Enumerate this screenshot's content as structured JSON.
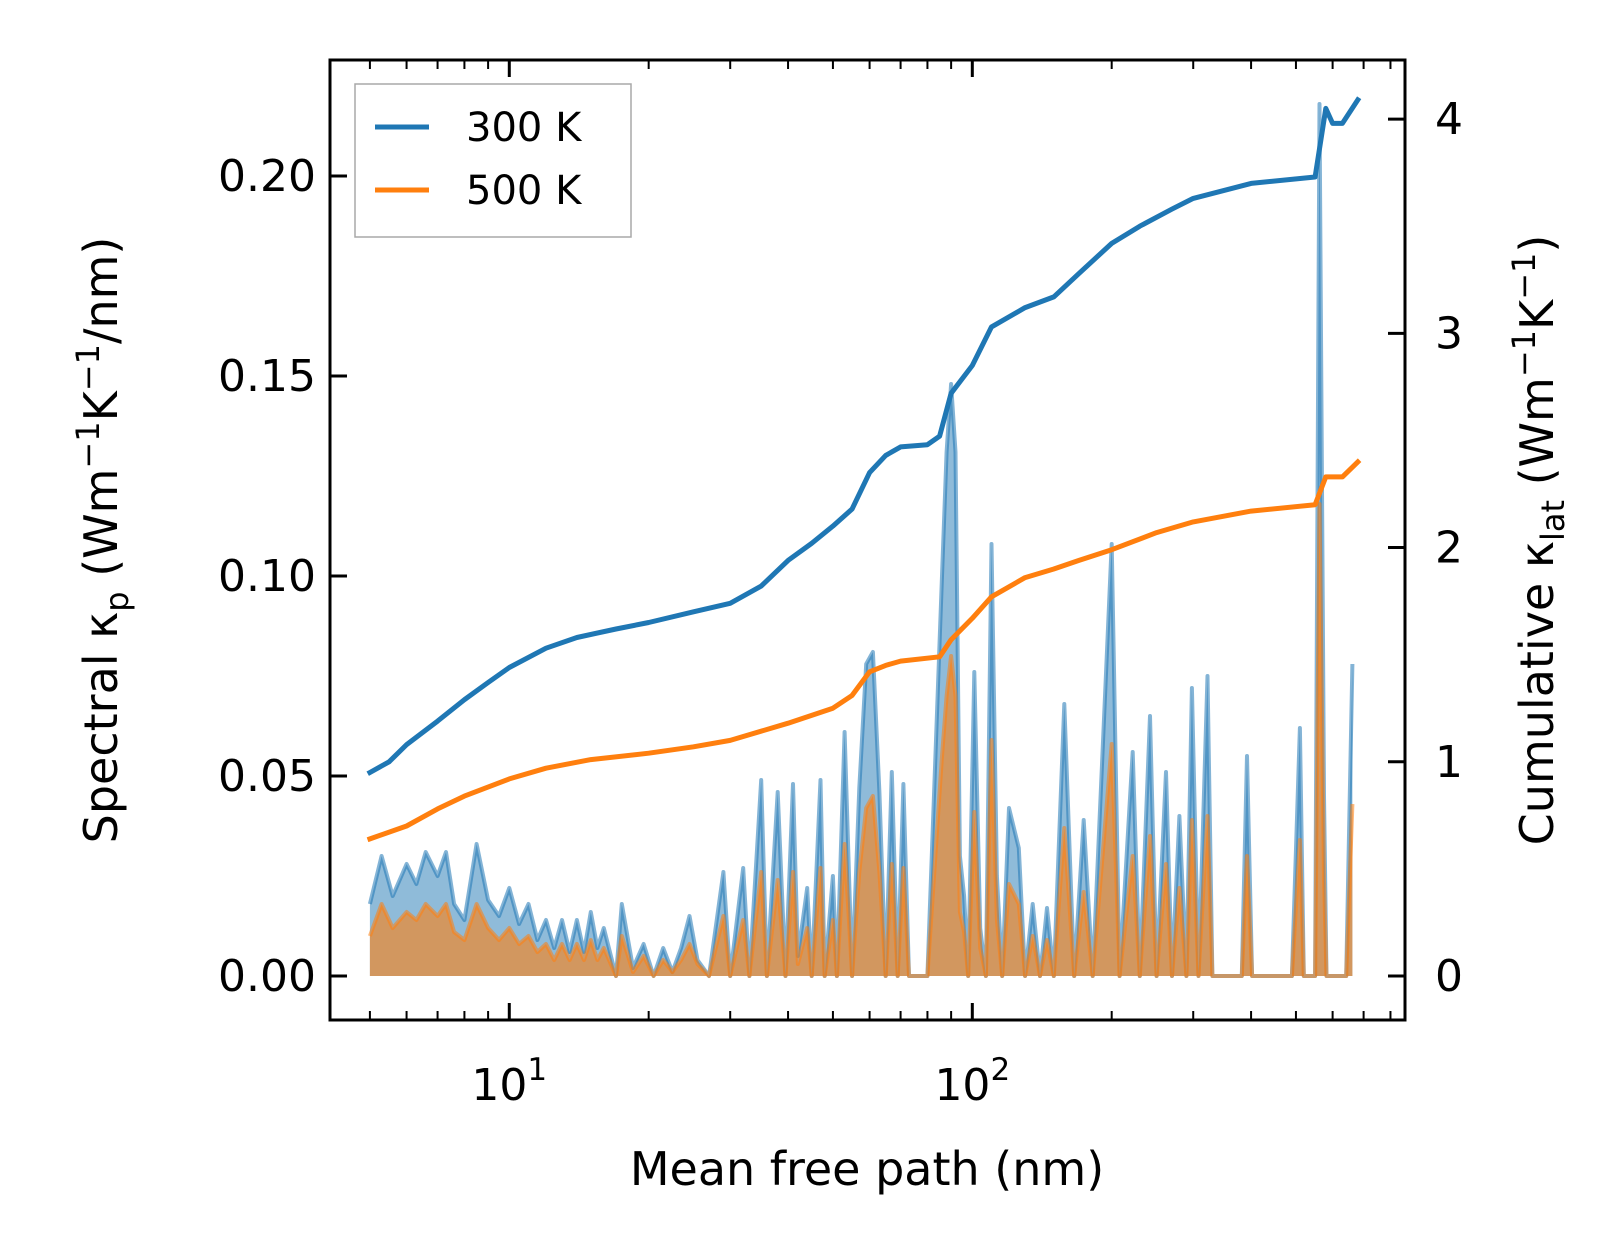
{
  "chart_data": {
    "type": "line",
    "title": "",
    "xlabel": "Mean free path (nm)",
    "ylabel_left_parts": [
      "Spectral κ",
      "p",
      " (Wm",
      "−1",
      "K",
      "−1",
      "/nm)"
    ],
    "ylabel_right_parts": [
      "Cumulative κ",
      "lat",
      " (Wm",
      "−1",
      "K",
      "−1",
      ")"
    ],
    "x_scale": "log",
    "xlim": [
      4.1,
      860
    ],
    "ylim_left": [
      -0.011,
      0.229
    ],
    "ylim_right": [
      -0.2054,
      4.276
    ],
    "x_major_ticks": [
      {
        "value": 10,
        "base": "10",
        "exp": "1"
      },
      {
        "value": 100,
        "base": "10",
        "exp": "2"
      }
    ],
    "yticks_left": [
      {
        "value": 0.0,
        "label": "0.00"
      },
      {
        "value": 0.05,
        "label": "0.05"
      },
      {
        "value": 0.1,
        "label": "0.10"
      },
      {
        "value": 0.15,
        "label": "0.15"
      },
      {
        "value": 0.2,
        "label": "0.20"
      }
    ],
    "yticks_right": [
      {
        "value": 0,
        "label": "0"
      },
      {
        "value": 1,
        "label": "1"
      },
      {
        "value": 2,
        "label": "2"
      },
      {
        "value": 3,
        "label": "3"
      },
      {
        "value": 4,
        "label": "4"
      }
    ],
    "legend": {
      "position": "upper-left",
      "entries": [
        "300 K",
        "500 K"
      ]
    },
    "colors": {
      "300K": "#1f77b4",
      "500K": "#ff7f0e"
    },
    "series": [
      {
        "name": "300 K",
        "color": "#1f77b4",
        "axis": "right",
        "kind": "cumulative",
        "points": [
          [
            5,
            0.95
          ],
          [
            5.5,
            1.0
          ],
          [
            6,
            1.08
          ],
          [
            7,
            1.19
          ],
          [
            8,
            1.29
          ],
          [
            9,
            1.37
          ],
          [
            10,
            1.44
          ],
          [
            12,
            1.53
          ],
          [
            14,
            1.58
          ],
          [
            17,
            1.62
          ],
          [
            20,
            1.65
          ],
          [
            25,
            1.7
          ],
          [
            30,
            1.74
          ],
          [
            35,
            1.82
          ],
          [
            40,
            1.94
          ],
          [
            45,
            2.02
          ],
          [
            50,
            2.1
          ],
          [
            55,
            2.18
          ],
          [
            60,
            2.35
          ],
          [
            65,
            2.43
          ],
          [
            70,
            2.47
          ],
          [
            80,
            2.48
          ],
          [
            85,
            2.52
          ],
          [
            90,
            2.72
          ],
          [
            100,
            2.85
          ],
          [
            110,
            3.03
          ],
          [
            130,
            3.12
          ],
          [
            150,
            3.17
          ],
          [
            170,
            3.28
          ],
          [
            200,
            3.42
          ],
          [
            230,
            3.5
          ],
          [
            270,
            3.58
          ],
          [
            300,
            3.63
          ],
          [
            400,
            3.7
          ],
          [
            550,
            3.73
          ],
          [
            580,
            4.05
          ],
          [
            600,
            3.98
          ],
          [
            630,
            3.98
          ],
          [
            680,
            4.09
          ]
        ]
      },
      {
        "name": "500 K",
        "color": "#ff7f0e",
        "axis": "right",
        "kind": "cumulative",
        "points": [
          [
            5,
            0.64
          ],
          [
            6,
            0.7
          ],
          [
            7,
            0.78
          ],
          [
            8,
            0.84
          ],
          [
            10,
            0.92
          ],
          [
            12,
            0.97
          ],
          [
            15,
            1.01
          ],
          [
            20,
            1.04
          ],
          [
            25,
            1.07
          ],
          [
            30,
            1.1
          ],
          [
            40,
            1.18
          ],
          [
            50,
            1.25
          ],
          [
            55,
            1.31
          ],
          [
            60,
            1.42
          ],
          [
            65,
            1.45
          ],
          [
            70,
            1.47
          ],
          [
            85,
            1.49
          ],
          [
            90,
            1.57
          ],
          [
            100,
            1.67
          ],
          [
            110,
            1.77
          ],
          [
            130,
            1.86
          ],
          [
            150,
            1.9
          ],
          [
            170,
            1.94
          ],
          [
            200,
            1.99
          ],
          [
            250,
            2.07
          ],
          [
            300,
            2.12
          ],
          [
            400,
            2.17
          ],
          [
            550,
            2.2
          ],
          [
            580,
            2.33
          ],
          [
            630,
            2.33
          ],
          [
            680,
            2.4
          ]
        ]
      },
      {
        "name": "300 K spectral",
        "color": "#1f77b4",
        "axis": "left",
        "kind": "spectral",
        "points": [
          [
            5,
            0.018
          ],
          [
            5.3,
            0.03
          ],
          [
            5.6,
            0.02
          ],
          [
            6,
            0.028
          ],
          [
            6.3,
            0.023
          ],
          [
            6.6,
            0.031
          ],
          [
            7,
            0.025
          ],
          [
            7.3,
            0.031
          ],
          [
            7.6,
            0.018
          ],
          [
            8,
            0.014
          ],
          [
            8.5,
            0.033
          ],
          [
            9,
            0.019
          ],
          [
            9.5,
            0.015
          ],
          [
            10,
            0.022
          ],
          [
            10.5,
            0.013
          ],
          [
            11,
            0.018
          ],
          [
            11.5,
            0.009
          ],
          [
            12,
            0.014
          ],
          [
            12.5,
            0.007
          ],
          [
            13,
            0.014
          ],
          [
            13.5,
            0.006
          ],
          [
            14,
            0.014
          ],
          [
            14.5,
            0.006
          ],
          [
            15,
            0.016
          ],
          [
            15.5,
            0.007
          ],
          [
            16,
            0.012
          ],
          [
            17,
            0.0
          ],
          [
            17.5,
            0.018
          ],
          [
            18.5,
            0.002
          ],
          [
            19.5,
            0.008
          ],
          [
            20.5,
            0.0
          ],
          [
            21.5,
            0.007
          ],
          [
            22.5,
            0.001
          ],
          [
            23.5,
            0.007
          ],
          [
            24.5,
            0.015
          ],
          [
            25.5,
            0.004
          ],
          [
            27,
            0.0
          ],
          [
            29,
            0.026
          ],
          [
            30,
            0.0
          ],
          [
            32,
            0.027
          ],
          [
            33,
            0.0
          ],
          [
            35,
            0.049
          ],
          [
            36,
            0.0
          ],
          [
            38,
            0.046
          ],
          [
            39.5,
            0.0
          ],
          [
            41,
            0.048
          ],
          [
            42,
            0.005
          ],
          [
            44,
            0.022
          ],
          [
            45,
            0.0
          ],
          [
            47,
            0.049
          ],
          [
            48,
            0.0
          ],
          [
            50,
            0.025
          ],
          [
            51,
            0.0
          ],
          [
            53,
            0.061
          ],
          [
            55,
            0.0
          ],
          [
            57,
            0.047
          ],
          [
            59,
            0.078
          ],
          [
            61,
            0.081
          ],
          [
            63,
            0.046
          ],
          [
            65,
            0.0
          ],
          [
            67,
            0.051
          ],
          [
            69,
            0.0
          ],
          [
            71,
            0.048
          ],
          [
            73,
            0.0
          ],
          [
            80,
            0.0
          ],
          [
            86,
            0.1
          ],
          [
            88,
            0.131
          ],
          [
            90,
            0.148
          ],
          [
            92,
            0.131
          ],
          [
            94,
            0.03
          ],
          [
            96,
            0.02
          ],
          [
            98,
            0.0
          ],
          [
            101,
            0.076
          ],
          [
            104,
            0.012
          ],
          [
            107,
            0.0
          ],
          [
            110,
            0.108
          ],
          [
            113,
            0.025
          ],
          [
            116,
            0.0
          ],
          [
            120,
            0.042
          ],
          [
            126,
            0.032
          ],
          [
            130,
            0.0
          ],
          [
            135,
            0.018
          ],
          [
            140,
            0.0
          ],
          [
            145,
            0.017
          ],
          [
            150,
            0.0
          ],
          [
            158,
            0.068
          ],
          [
            166,
            0.0
          ],
          [
            174,
            0.039
          ],
          [
            182,
            0.0
          ],
          [
            200,
            0.108
          ],
          [
            208,
            0.0
          ],
          [
            222,
            0.056
          ],
          [
            230,
            0.0
          ],
          [
            242,
            0.065
          ],
          [
            250,
            0.0
          ],
          [
            262,
            0.051
          ],
          [
            270,
            0.0
          ],
          [
            280,
            0.04
          ],
          [
            290,
            0.0
          ],
          [
            298,
            0.072
          ],
          [
            308,
            0.0
          ],
          [
            322,
            0.075
          ],
          [
            330,
            0.0
          ],
          [
            382,
            0.0
          ],
          [
            392,
            0.055
          ],
          [
            402,
            0.0
          ],
          [
            490,
            0.0
          ],
          [
            510,
            0.062
          ],
          [
            520,
            0.0
          ],
          [
            550,
            0.0
          ],
          [
            562,
            0.218
          ],
          [
            575,
            0.045
          ],
          [
            582,
            0.0
          ],
          [
            642,
            0.0
          ],
          [
            662,
            0.078
          ]
        ]
      },
      {
        "name": "500 K spectral",
        "color": "#ff7f0e",
        "axis": "left",
        "kind": "spectral",
        "points": [
          [
            5,
            0.01
          ],
          [
            5.3,
            0.018
          ],
          [
            5.6,
            0.012
          ],
          [
            6,
            0.016
          ],
          [
            6.3,
            0.014
          ],
          [
            6.6,
            0.018
          ],
          [
            7,
            0.015
          ],
          [
            7.3,
            0.018
          ],
          [
            7.6,
            0.011
          ],
          [
            8,
            0.009
          ],
          [
            8.5,
            0.018
          ],
          [
            9,
            0.012
          ],
          [
            9.5,
            0.009
          ],
          [
            10,
            0.012
          ],
          [
            10.5,
            0.008
          ],
          [
            11,
            0.01
          ],
          [
            11.5,
            0.006
          ],
          [
            12,
            0.008
          ],
          [
            12.5,
            0.004
          ],
          [
            13,
            0.008
          ],
          [
            13.5,
            0.004
          ],
          [
            14,
            0.008
          ],
          [
            14.5,
            0.004
          ],
          [
            15,
            0.009
          ],
          [
            15.5,
            0.004
          ],
          [
            16,
            0.007
          ],
          [
            17,
            0.0
          ],
          [
            17.5,
            0.01
          ],
          [
            18.5,
            0.001
          ],
          [
            19.5,
            0.005
          ],
          [
            20.5,
            0.0
          ],
          [
            21.5,
            0.004
          ],
          [
            22.5,
            0.001
          ],
          [
            23.5,
            0.004
          ],
          [
            24.5,
            0.008
          ],
          [
            25.5,
            0.003
          ],
          [
            27,
            0.0
          ],
          [
            29,
            0.015
          ],
          [
            30,
            0.0
          ],
          [
            32,
            0.014
          ],
          [
            33,
            0.0
          ],
          [
            35,
            0.026
          ],
          [
            36,
            0.0
          ],
          [
            38,
            0.024
          ],
          [
            39.5,
            0.0
          ],
          [
            41,
            0.026
          ],
          [
            42,
            0.003
          ],
          [
            44,
            0.012
          ],
          [
            45,
            0.0
          ],
          [
            47,
            0.027
          ],
          [
            48,
            0.0
          ],
          [
            50,
            0.014
          ],
          [
            51,
            0.0
          ],
          [
            53,
            0.033
          ],
          [
            55,
            0.0
          ],
          [
            57,
            0.026
          ],
          [
            59,
            0.042
          ],
          [
            61,
            0.045
          ],
          [
            63,
            0.026
          ],
          [
            65,
            0.0
          ],
          [
            67,
            0.028
          ],
          [
            69,
            0.0
          ],
          [
            71,
            0.027
          ],
          [
            73,
            0.0
          ],
          [
            80,
            0.0
          ],
          [
            86,
            0.055
          ],
          [
            88,
            0.07
          ],
          [
            90,
            0.08
          ],
          [
            92,
            0.07
          ],
          [
            94,
            0.016
          ],
          [
            96,
            0.011
          ],
          [
            98,
            0.0
          ],
          [
            101,
            0.041
          ],
          [
            104,
            0.007
          ],
          [
            107,
            0.0
          ],
          [
            110,
            0.059
          ],
          [
            113,
            0.014
          ],
          [
            116,
            0.0
          ],
          [
            120,
            0.023
          ],
          [
            126,
            0.018
          ],
          [
            130,
            0.0
          ],
          [
            135,
            0.01
          ],
          [
            140,
            0.0
          ],
          [
            145,
            0.009
          ],
          [
            150,
            0.0
          ],
          [
            158,
            0.037
          ],
          [
            166,
            0.0
          ],
          [
            174,
            0.021
          ],
          [
            182,
            0.0
          ],
          [
            200,
            0.058
          ],
          [
            208,
            0.0
          ],
          [
            222,
            0.03
          ],
          [
            230,
            0.0
          ],
          [
            242,
            0.035
          ],
          [
            250,
            0.0
          ],
          [
            262,
            0.028
          ],
          [
            270,
            0.0
          ],
          [
            280,
            0.022
          ],
          [
            290,
            0.0
          ],
          [
            298,
            0.039
          ],
          [
            308,
            0.0
          ],
          [
            322,
            0.04
          ],
          [
            330,
            0.0
          ],
          [
            382,
            0.0
          ],
          [
            392,
            0.03
          ],
          [
            402,
            0.0
          ],
          [
            490,
            0.0
          ],
          [
            510,
            0.034
          ],
          [
            520,
            0.0
          ],
          [
            550,
            0.0
          ],
          [
            562,
            0.118
          ],
          [
            575,
            0.024
          ],
          [
            582,
            0.0
          ],
          [
            642,
            0.0
          ],
          [
            662,
            0.043
          ]
        ]
      }
    ]
  }
}
